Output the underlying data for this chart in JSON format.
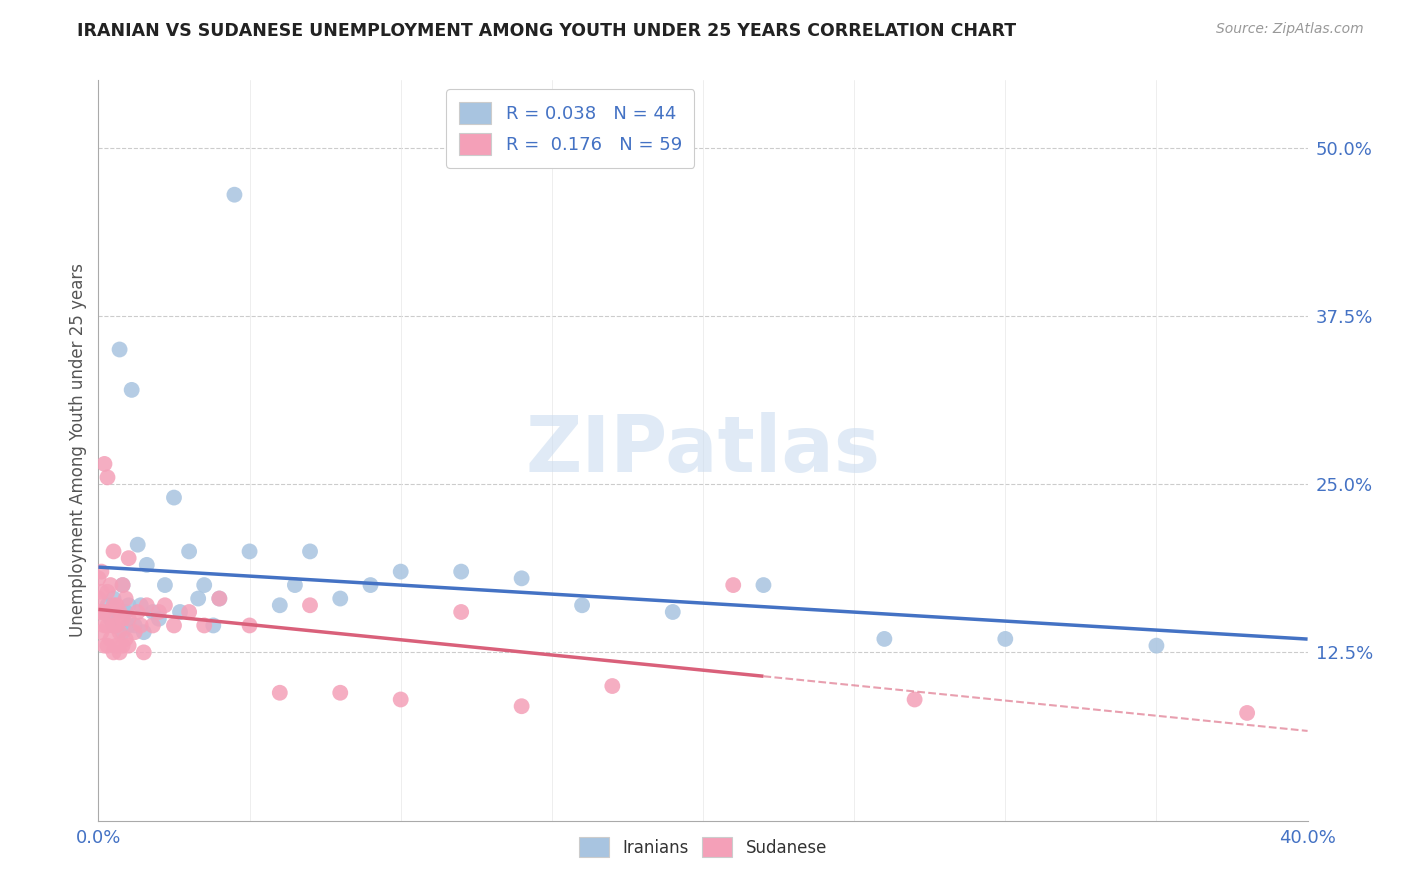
{
  "title": "IRANIAN VS SUDANESE UNEMPLOYMENT AMONG YOUTH UNDER 25 YEARS CORRELATION CHART",
  "source": "Source: ZipAtlas.com",
  "ylabel": "Unemployment Among Youth under 25 years",
  "xlim": [
    0.0,
    0.4
  ],
  "ylim": [
    0.0,
    0.55
  ],
  "yticks": [
    0.0,
    0.125,
    0.25,
    0.375,
    0.5
  ],
  "ytick_labels": [
    "",
    "12.5%",
    "25.0%",
    "37.5%",
    "50.0%"
  ],
  "xticks": [
    0.0,
    0.4
  ],
  "xtick_labels": [
    "0.0%",
    "40.0%"
  ],
  "legend_iranian_R": "0.038",
  "legend_iranian_N": "44",
  "legend_sudanese_R": "0.176",
  "legend_sudanese_N": "59",
  "iranian_color": "#a8c4e0",
  "sudanese_color": "#f4a0b8",
  "iranian_line_color": "#4472c4",
  "sudanese_line_color": "#d9607a",
  "watermark": "ZIPatlas",
  "background_color": "#ffffff",
  "iranians_x": [
    0.002,
    0.003,
    0.004,
    0.005,
    0.005,
    0.006,
    0.007,
    0.008,
    0.008,
    0.009,
    0.01,
    0.01,
    0.011,
    0.012,
    0.013,
    0.014,
    0.015,
    0.016,
    0.018,
    0.02,
    0.022,
    0.025,
    0.027,
    0.03,
    0.033,
    0.035,
    0.038,
    0.04,
    0.045,
    0.05,
    0.06,
    0.065,
    0.07,
    0.08,
    0.09,
    0.1,
    0.12,
    0.14,
    0.16,
    0.19,
    0.22,
    0.26,
    0.3,
    0.35
  ],
  "iranians_y": [
    0.155,
    0.16,
    0.15,
    0.145,
    0.165,
    0.155,
    0.35,
    0.14,
    0.175,
    0.155,
    0.145,
    0.16,
    0.32,
    0.145,
    0.205,
    0.16,
    0.14,
    0.19,
    0.155,
    0.15,
    0.175,
    0.24,
    0.155,
    0.2,
    0.165,
    0.175,
    0.145,
    0.165,
    0.465,
    0.2,
    0.16,
    0.175,
    0.2,
    0.165,
    0.175,
    0.185,
    0.185,
    0.18,
    0.16,
    0.155,
    0.175,
    0.135,
    0.135,
    0.13
  ],
  "sudanese_x": [
    0.0,
    0.0,
    0.0,
    0.001,
    0.001,
    0.001,
    0.001,
    0.002,
    0.002,
    0.002,
    0.002,
    0.003,
    0.003,
    0.003,
    0.003,
    0.004,
    0.004,
    0.004,
    0.005,
    0.005,
    0.005,
    0.005,
    0.006,
    0.006,
    0.006,
    0.007,
    0.007,
    0.007,
    0.008,
    0.008,
    0.008,
    0.009,
    0.009,
    0.01,
    0.01,
    0.01,
    0.012,
    0.013,
    0.014,
    0.015,
    0.016,
    0.018,
    0.02,
    0.022,
    0.025,
    0.03,
    0.035,
    0.04,
    0.05,
    0.06,
    0.07,
    0.08,
    0.1,
    0.12,
    0.14,
    0.17,
    0.21,
    0.27,
    0.38
  ],
  "sudanese_y": [
    0.155,
    0.165,
    0.18,
    0.14,
    0.155,
    0.17,
    0.185,
    0.13,
    0.145,
    0.155,
    0.265,
    0.13,
    0.145,
    0.17,
    0.255,
    0.135,
    0.155,
    0.175,
    0.125,
    0.145,
    0.16,
    0.2,
    0.13,
    0.145,
    0.16,
    0.125,
    0.14,
    0.155,
    0.13,
    0.15,
    0.175,
    0.135,
    0.165,
    0.13,
    0.15,
    0.195,
    0.14,
    0.155,
    0.145,
    0.125,
    0.16,
    0.145,
    0.155,
    0.16,
    0.145,
    0.155,
    0.145,
    0.165,
    0.145,
    0.095,
    0.16,
    0.095,
    0.09,
    0.155,
    0.085,
    0.1,
    0.175,
    0.09,
    0.08
  ]
}
